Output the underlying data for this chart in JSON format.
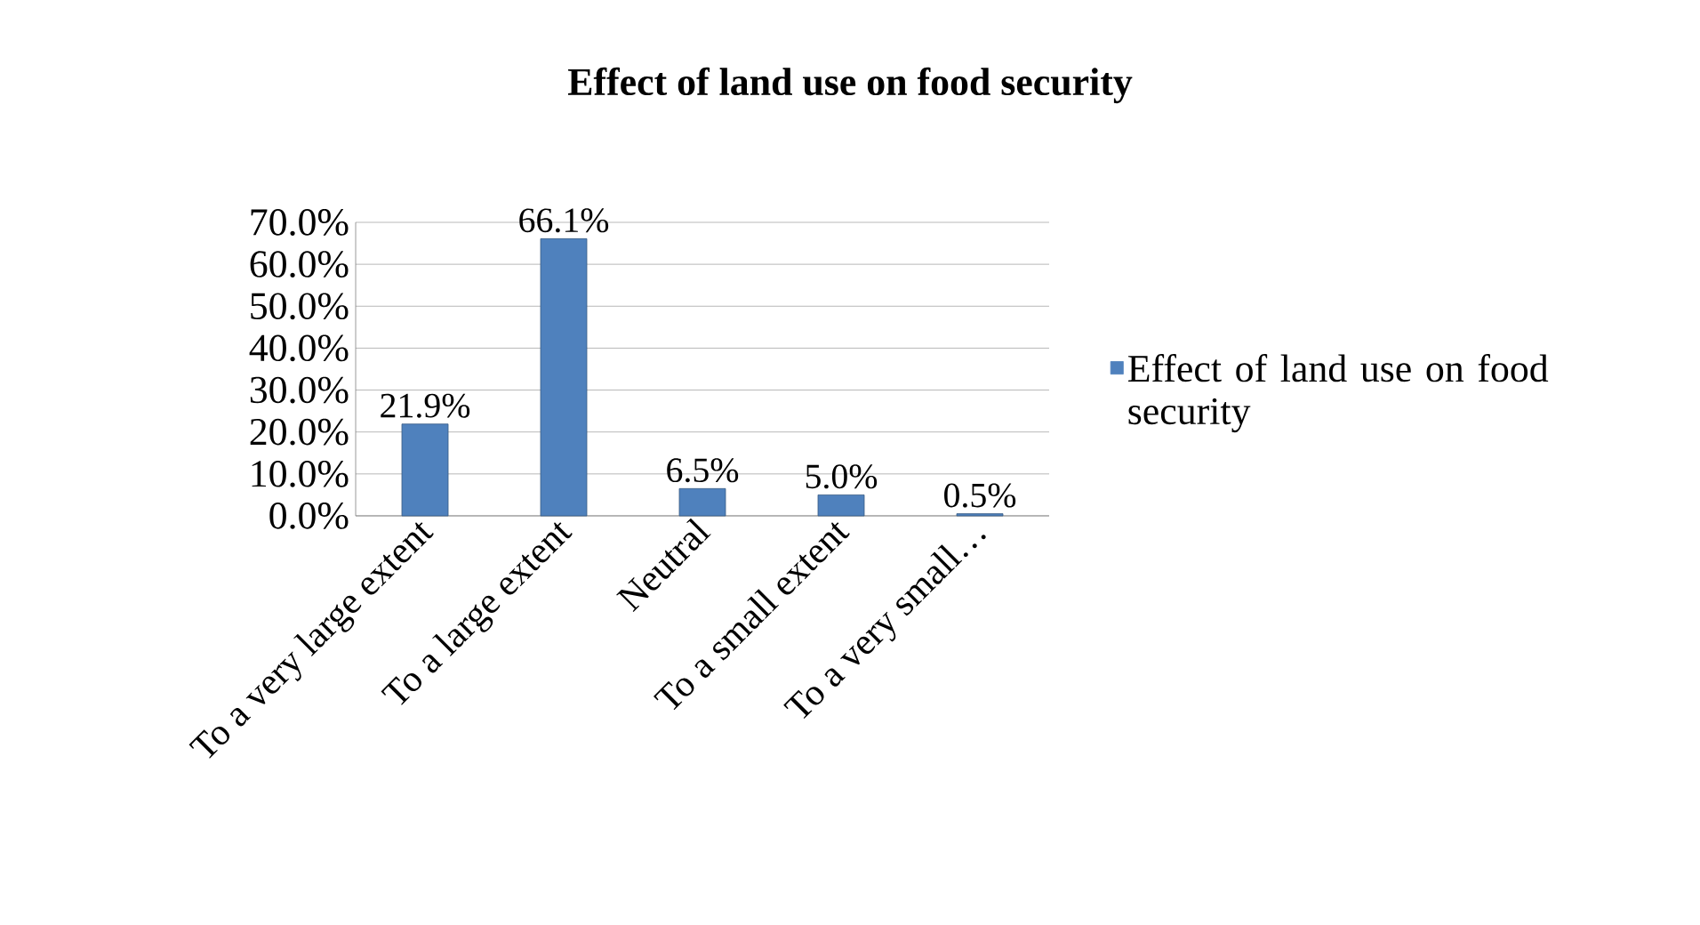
{
  "chart_data": {
    "type": "bar",
    "title": "Effect of land use on food security",
    "categories": [
      "To a very large extent",
      "To a large extent",
      "Neutral",
      "To a small extent",
      "To a very small…"
    ],
    "series": [
      {
        "name": "Effect of land use on food security",
        "color": "#4f81bd",
        "values": [
          21.9,
          66.1,
          6.5,
          5.0,
          0.5
        ]
      }
    ],
    "ylim": [
      0,
      70
    ],
    "yticks": [
      {
        "value": 0,
        "label": "0.0%"
      },
      {
        "value": 10,
        "label": "10.0%"
      },
      {
        "value": 20,
        "label": "20.0%"
      },
      {
        "value": 30,
        "label": "30.0%"
      },
      {
        "value": 40,
        "label": "40.0%"
      },
      {
        "value": 50,
        "label": "50.0%"
      },
      {
        "value": 60,
        "label": "60.0%"
      },
      {
        "value": 70,
        "label": "70.0%"
      }
    ],
    "value_labels": [
      "21.9%",
      "66.1%",
      "6.5%",
      "5.0%",
      "0.5%"
    ],
    "grid": "y",
    "legend": "right"
  }
}
